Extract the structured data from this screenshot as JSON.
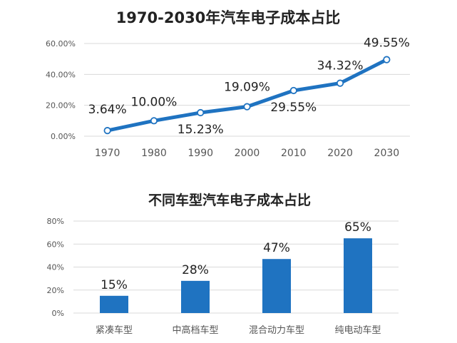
{
  "chart_data": [
    {
      "type": "line",
      "title": "1970-2030年汽车电子成本占比",
      "x": [
        "1970",
        "1980",
        "1990",
        "2000",
        "2010",
        "2020",
        "2030"
      ],
      "values": [
        3.64,
        10.0,
        15.23,
        19.09,
        29.55,
        34.32,
        49.55
      ],
      "value_labels": [
        "3.64%",
        "10.00%",
        "15.23%",
        "19.09%",
        "29.55%",
        "34.32%",
        "49.55%"
      ],
      "y_ticks": [
        "0.00%",
        "20.00%",
        "40.00%",
        "60.00%"
      ],
      "ylim": [
        0,
        60
      ],
      "grid": true,
      "color": "#1f73c1"
    },
    {
      "type": "bar",
      "title": "不同车型汽车电子成本占比",
      "categories": [
        "紧凑车型",
        "中高档车型",
        "混合动力车型",
        "纯电动车型"
      ],
      "values": [
        15,
        28,
        47,
        65
      ],
      "value_labels": [
        "15%",
        "28%",
        "47%",
        "65%"
      ],
      "y_ticks": [
        "0%",
        "20%",
        "40%",
        "60%",
        "80%"
      ],
      "ylim": [
        0,
        80
      ],
      "grid": true,
      "color": "#1f73c1"
    }
  ]
}
